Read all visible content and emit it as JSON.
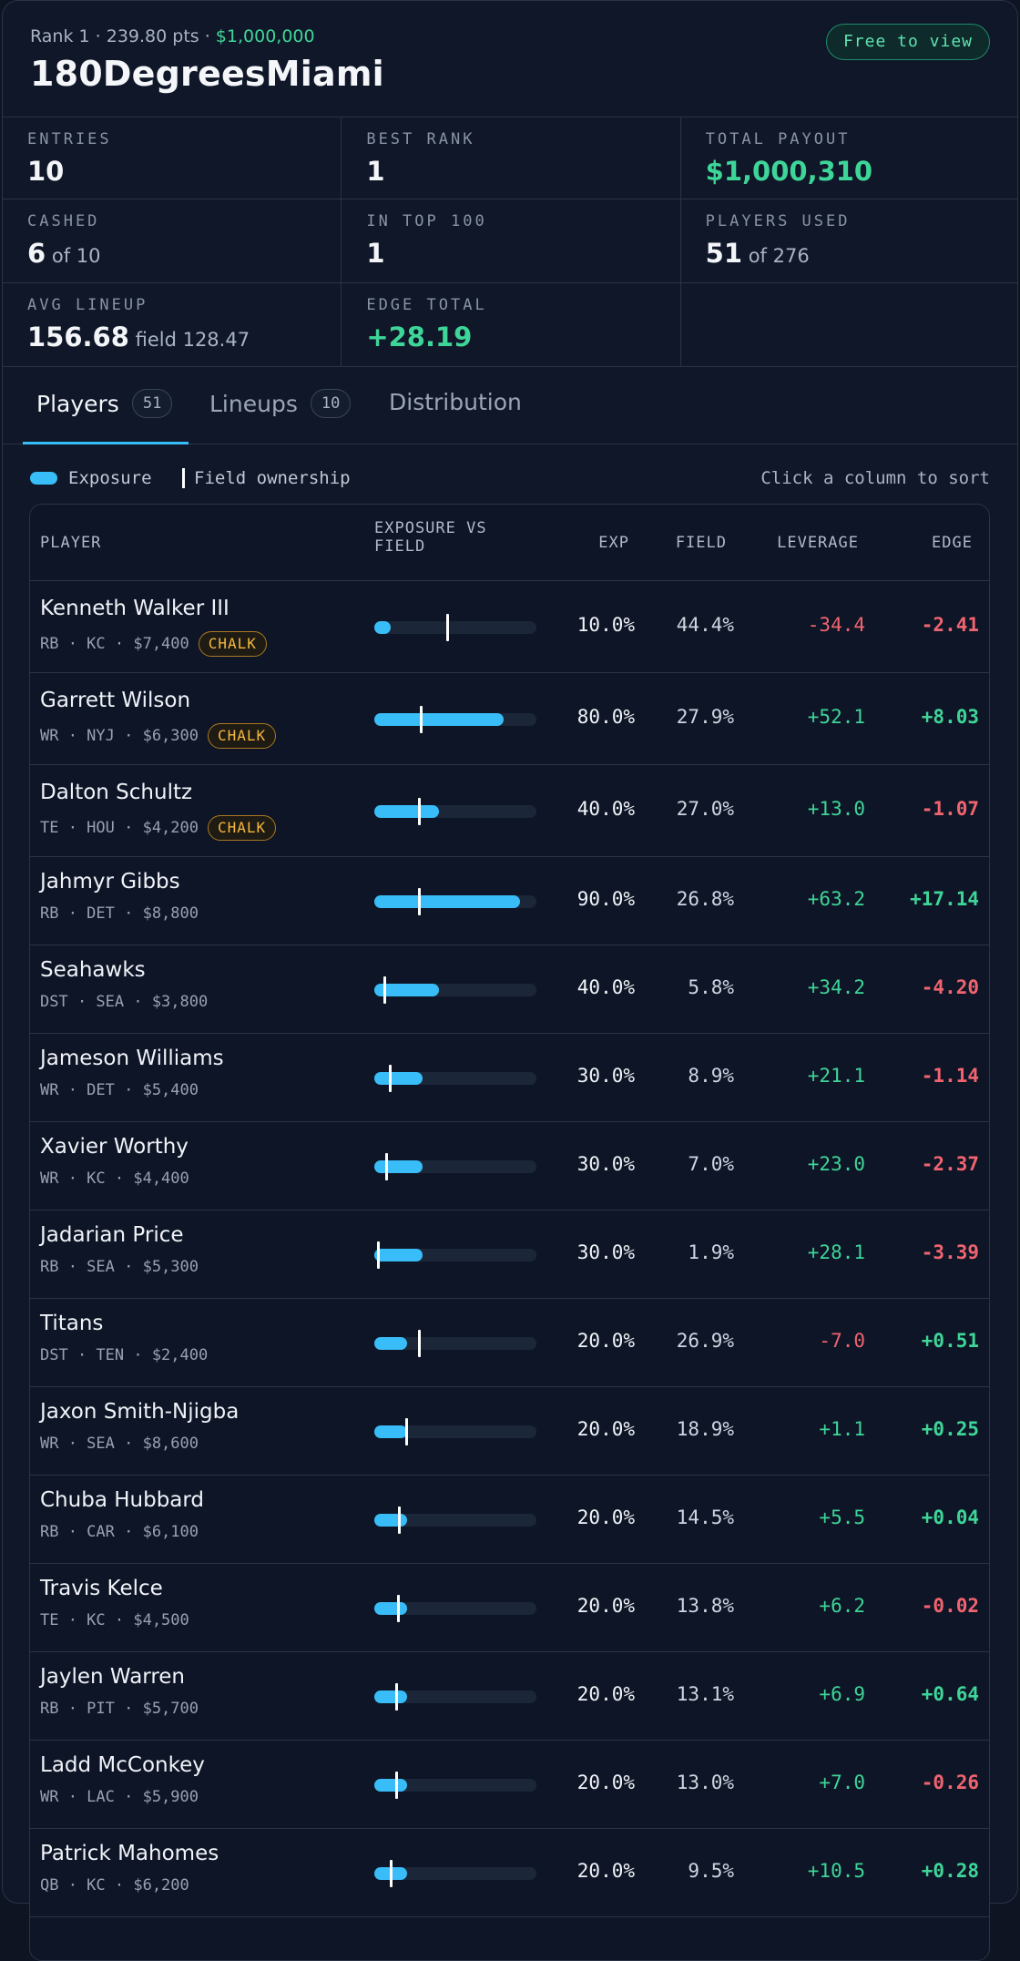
{
  "header": {
    "rank": "Rank 1",
    "sep1": " · ",
    "pts": "239.80 pts",
    "sep2": " · ",
    "prize": "$1,000,000",
    "title": "180DegreesMiami",
    "badge": "Free to view"
  },
  "stats": {
    "entries": {
      "label": "ENTRIES",
      "value": "10"
    },
    "best_rank": {
      "label": "BEST RANK",
      "value": "1"
    },
    "total_payout": {
      "label": "TOTAL PAYOUT",
      "value": "$1,000,310"
    },
    "cashed": {
      "label": "CASHED",
      "value": "6",
      "sub": " of 10"
    },
    "in_top_100": {
      "label": "IN TOP 100",
      "value": "1"
    },
    "players_used": {
      "label": "PLAYERS USED",
      "value": "51",
      "sub": " of 276"
    },
    "avg_lineup": {
      "label": "AVG LINEUP",
      "value": "156.68",
      "sub": " field 128.47"
    },
    "edge_total": {
      "label": "EDGE TOTAL",
      "value": "+28.19"
    }
  },
  "tabs": [
    {
      "label": "Players",
      "count": "51"
    },
    {
      "label": "Lineups",
      "count": "10"
    },
    {
      "label": "Distribution"
    }
  ],
  "legend": {
    "exposure": "Exposure",
    "field": "Field ownership",
    "sort_hint": "Click a column to sort"
  },
  "table": {
    "columns": {
      "player": "PLAYER",
      "exposure_vs_field_1": "EXPOSURE VS",
      "exposure_vs_field_2": "FIELD",
      "exp": "EXP",
      "field": "FIELD",
      "leverage": "LEVERAGE",
      "edge": "EDGE"
    },
    "rows": [
      {
        "name": "Kenneth Walker III",
        "meta": "RB · KC · $7,400",
        "chalk": "CHALK",
        "exp": "10.0%",
        "field": "44.4%",
        "leverage": "-34.4",
        "edge": "-2.41",
        "exp_frac": 0.1,
        "field_frac": 0.444
      },
      {
        "name": "Garrett Wilson",
        "meta": "WR · NYJ · $6,300",
        "chalk": "CHALK",
        "exp": "80.0%",
        "field": "27.9%",
        "leverage": "+52.1",
        "edge": "+8.03",
        "exp_frac": 0.8,
        "field_frac": 0.279
      },
      {
        "name": "Dalton Schultz",
        "meta": "TE · HOU · $4,200",
        "chalk": "CHALK",
        "exp": "40.0%",
        "field": "27.0%",
        "leverage": "+13.0",
        "edge": "-1.07",
        "exp_frac": 0.4,
        "field_frac": 0.27
      },
      {
        "name": "Jahmyr Gibbs",
        "meta": "RB · DET · $8,800",
        "exp": "90.0%",
        "field": "26.8%",
        "leverage": "+63.2",
        "edge": "+17.14",
        "exp_frac": 0.9,
        "field_frac": 0.268
      },
      {
        "name": "Seahawks",
        "meta": "DST · SEA · $3,800",
        "exp": "40.0%",
        "field": "5.8%",
        "leverage": "+34.2",
        "edge": "-4.20",
        "exp_frac": 0.4,
        "field_frac": 0.058
      },
      {
        "name": "Jameson Williams",
        "meta": "WR · DET · $5,400",
        "exp": "30.0%",
        "field": "8.9%",
        "leverage": "+21.1",
        "edge": "-1.14",
        "exp_frac": 0.3,
        "field_frac": 0.089
      },
      {
        "name": "Xavier Worthy",
        "meta": "WR · KC · $4,400",
        "exp": "30.0%",
        "field": "7.0%",
        "leverage": "+23.0",
        "edge": "-2.37",
        "exp_frac": 0.3,
        "field_frac": 0.07
      },
      {
        "name": "Jadarian Price",
        "meta": "RB · SEA · $5,300",
        "exp": "30.0%",
        "field": "1.9%",
        "leverage": "+28.1",
        "edge": "-3.39",
        "exp_frac": 0.3,
        "field_frac": 0.019
      },
      {
        "name": "Titans",
        "meta": "DST · TEN · $2,400",
        "exp": "20.0%",
        "field": "26.9%",
        "leverage": "-7.0",
        "edge": "+0.51",
        "exp_frac": 0.2,
        "field_frac": 0.269
      },
      {
        "name": "Jaxon Smith-Njigba",
        "meta": "WR · SEA · $8,600",
        "exp": "20.0%",
        "field": "18.9%",
        "leverage": "+1.1",
        "edge": "+0.25",
        "exp_frac": 0.2,
        "field_frac": 0.189
      },
      {
        "name": "Chuba Hubbard",
        "meta": "RB · CAR · $6,100",
        "exp": "20.0%",
        "field": "14.5%",
        "leverage": "+5.5",
        "edge": "+0.04",
        "exp_frac": 0.2,
        "field_frac": 0.145
      },
      {
        "name": "Travis Kelce",
        "meta": "TE · KC · $4,500",
        "exp": "20.0%",
        "field": "13.8%",
        "leverage": "+6.2",
        "edge": "-0.02",
        "exp_frac": 0.2,
        "field_frac": 0.138
      },
      {
        "name": "Jaylen Warren",
        "meta": "RB · PIT · $5,700",
        "exp": "20.0%",
        "field": "13.1%",
        "leverage": "+6.9",
        "edge": "+0.64",
        "exp_frac": 0.2,
        "field_frac": 0.131
      },
      {
        "name": "Ladd McConkey",
        "meta": "WR · LAC · $5,900",
        "exp": "20.0%",
        "field": "13.0%",
        "leverage": "+7.0",
        "edge": "-0.26",
        "exp_frac": 0.2,
        "field_frac": 0.13
      },
      {
        "name": "Patrick Mahomes",
        "meta": "QB · KC · $6,200",
        "exp": "20.0%",
        "field": "9.5%",
        "leverage": "+10.5",
        "edge": "+0.28",
        "exp_frac": 0.2,
        "field_frac": 0.095
      }
    ]
  },
  "colors": {
    "accent": "#38bdf8",
    "positive": "#3ed598",
    "negative": "#f06470",
    "chalk": "#f5b83d",
    "background": "#0f1728"
  }
}
